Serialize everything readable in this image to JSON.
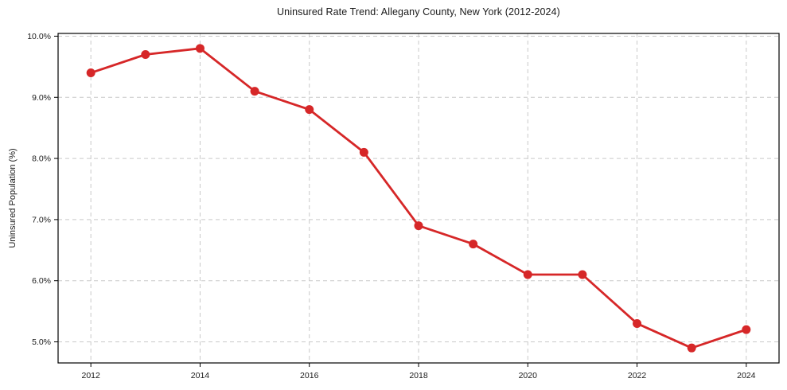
{
  "chart_data": {
    "type": "line",
    "title": "Uninsured Rate Trend: Allegany County, New York (2012-2024)",
    "xlabel": "",
    "ylabel": "Uninsured Population (%)",
    "x": [
      2012,
      2013,
      2014,
      2015,
      2016,
      2017,
      2018,
      2019,
      2020,
      2021,
      2022,
      2023,
      2024
    ],
    "values": [
      9.4,
      9.7,
      9.8,
      9.1,
      8.8,
      8.1,
      6.9,
      6.6,
      6.1,
      6.1,
      5.3,
      4.9,
      5.2
    ],
    "xlim": [
      2011.4,
      2024.6
    ],
    "ylim": [
      4.655,
      10.045
    ],
    "x_ticks": [
      2012,
      2014,
      2016,
      2018,
      2020,
      2022,
      2024
    ],
    "x_tick_labels": [
      "2012",
      "2014",
      "2016",
      "2018",
      "2020",
      "2022",
      "2024"
    ],
    "y_ticks": [
      5.0,
      6.0,
      7.0,
      8.0,
      9.0,
      10.0
    ],
    "y_tick_labels": [
      "5.0%",
      "6.0%",
      "7.0%",
      "8.0%",
      "9.0%",
      "10.0%"
    ],
    "grid": true,
    "legend": false,
    "line_color": "#d62728",
    "marker": "circle",
    "grid_color": "#c9c9c9",
    "spine_color": "#000000",
    "background_color": "#ffffff"
  }
}
